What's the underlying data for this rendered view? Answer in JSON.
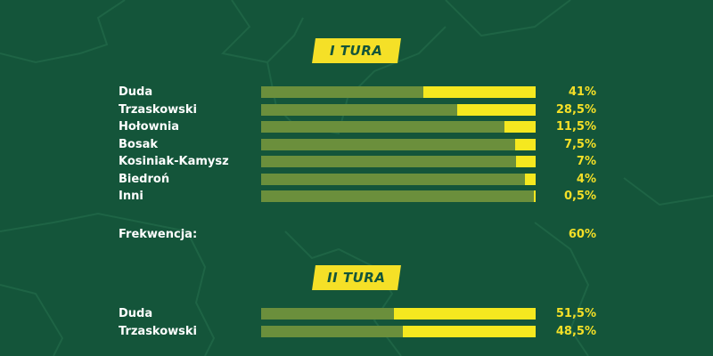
{
  "chart_data": [
    {
      "type": "bar",
      "title": "I TURA",
      "categories": [
        "Duda",
        "Trzaskowski",
        "Hołownia",
        "Bosak",
        "Kosiniak-Kamysz",
        "Biedroń",
        "Inni"
      ],
      "values": [
        41,
        28.5,
        11.5,
        7.5,
        7,
        4,
        0.5
      ],
      "value_labels": [
        "41%",
        "28,5%",
        "11,5%",
        "7,5%",
        "7%",
        "4%",
        "0,5%"
      ],
      "xlim": [
        0,
        100
      ],
      "grid": false
    },
    {
      "type": "bar",
      "title": "II TURA",
      "categories": [
        "Duda",
        "Trzaskowski"
      ],
      "values": [
        51.5,
        48.5
      ],
      "value_labels": [
        "51,5%",
        "48,5%"
      ],
      "xlim": [
        0,
        100
      ],
      "grid": false
    }
  ],
  "turnout": {
    "label": "Frekwencja:",
    "value": "60%"
  },
  "colors": {
    "background": "#14553a",
    "accent": "#f5e027",
    "track": "#6b8f3c"
  }
}
